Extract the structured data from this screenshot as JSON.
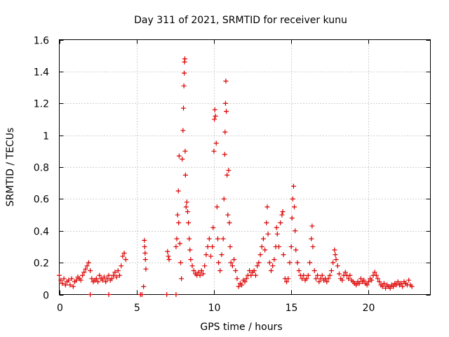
{
  "chart_data": {
    "type": "scatter",
    "title": "Day 311 of 2021, SRMTID for receiver kunu",
    "xlabel": "GPS time / hours",
    "ylabel": "SRMTID / TECUs",
    "xlim": [
      0,
      24
    ],
    "ylim": [
      0,
      1.6
    ],
    "xticks": [
      0,
      5,
      10,
      15,
      20
    ],
    "xtick_labels": [
      "0",
      "5",
      "10",
      "15",
      "20"
    ],
    "yticks": [
      0,
      0.2,
      0.4,
      0.6,
      0.8,
      1.0,
      1.2,
      1.4,
      1.6
    ],
    "ytick_labels": [
      "0",
      "0.2",
      "0.4",
      "0.6",
      "0.8",
      "1",
      "1.2",
      "1.4",
      "1.6"
    ],
    "grid": true,
    "marker": "+",
    "color": "#dd0000",
    "series": [
      {
        "name": "SRMTID",
        "points": [
          [
            0.0,
            0.12
          ],
          [
            0.1,
            0.09
          ],
          [
            0.2,
            0.07
          ],
          [
            0.3,
            0.1
          ],
          [
            0.4,
            0.06
          ],
          [
            0.5,
            0.08
          ],
          [
            0.6,
            0.09
          ],
          [
            0.7,
            0.06
          ],
          [
            0.8,
            0.1
          ],
          [
            0.9,
            0.05
          ],
          [
            1.0,
            0.08
          ],
          [
            1.1,
            0.09
          ],
          [
            1.2,
            0.11
          ],
          [
            1.3,
            0.1
          ],
          [
            1.4,
            0.09
          ],
          [
            1.5,
            0.12
          ],
          [
            1.6,
            0.14
          ],
          [
            1.7,
            0.16
          ],
          [
            1.8,
            0.18
          ],
          [
            1.9,
            0.2
          ],
          [
            2.0,
            0.15
          ],
          [
            2.1,
            0.1
          ],
          [
            2.2,
            0.08
          ],
          [
            2.3,
            0.09
          ],
          [
            2.4,
            0.1
          ],
          [
            2.5,
            0.08
          ],
          [
            2.6,
            0.12
          ],
          [
            2.7,
            0.1
          ],
          [
            2.8,
            0.09
          ],
          [
            2.9,
            0.11
          ],
          [
            3.0,
            0.08
          ],
          [
            3.1,
            0.1
          ],
          [
            3.2,
            0.12
          ],
          [
            3.3,
            0.09
          ],
          [
            3.4,
            0.1
          ],
          [
            3.5,
            0.12
          ],
          [
            3.6,
            0.14
          ],
          [
            3.7,
            0.11
          ],
          [
            3.8,
            0.15
          ],
          [
            3.9,
            0.12
          ],
          [
            4.0,
            0.18
          ],
          [
            4.1,
            0.24
          ],
          [
            4.2,
            0.26
          ],
          [
            4.3,
            0.22
          ],
          [
            2.0,
            0.0
          ],
          [
            3.2,
            0.0
          ],
          [
            5.25,
            0.0
          ],
          [
            5.35,
            0.0
          ],
          [
            6.95,
            0.0
          ],
          [
            7.55,
            0.0
          ],
          [
            5.45,
            0.05
          ],
          [
            5.5,
            0.34
          ],
          [
            5.52,
            0.3
          ],
          [
            5.55,
            0.26
          ],
          [
            5.57,
            0.22
          ],
          [
            5.6,
            0.16
          ],
          [
            7.0,
            0.27
          ],
          [
            7.05,
            0.24
          ],
          [
            7.1,
            0.22
          ],
          [
            7.55,
            0.3
          ],
          [
            7.6,
            0.35
          ],
          [
            7.65,
            0.5
          ],
          [
            7.7,
            0.65
          ],
          [
            7.72,
            0.45
          ],
          [
            7.75,
            0.87
          ],
          [
            7.8,
            0.32
          ],
          [
            7.85,
            0.2
          ],
          [
            7.9,
            0.1
          ],
          [
            7.95,
            0.85
          ],
          [
            8.0,
            1.03
          ],
          [
            8.03,
            1.17
          ],
          [
            8.06,
            1.31
          ],
          [
            8.08,
            1.39
          ],
          [
            8.1,
            1.46
          ],
          [
            8.12,
            1.48
          ],
          [
            8.14,
            0.9
          ],
          [
            8.16,
            0.75
          ],
          [
            8.2,
            0.55
          ],
          [
            8.25,
            0.58
          ],
          [
            8.3,
            0.52
          ],
          [
            8.35,
            0.45
          ],
          [
            8.4,
            0.35
          ],
          [
            8.45,
            0.28
          ],
          [
            8.5,
            0.22
          ],
          [
            8.6,
            0.18
          ],
          [
            8.7,
            0.15
          ],
          [
            8.8,
            0.13
          ],
          [
            8.9,
            0.12
          ],
          [
            9.0,
            0.14
          ],
          [
            9.1,
            0.12
          ],
          [
            9.2,
            0.15
          ],
          [
            9.3,
            0.13
          ],
          [
            9.4,
            0.18
          ],
          [
            9.5,
            0.25
          ],
          [
            9.6,
            0.3
          ],
          [
            9.7,
            0.35
          ],
          [
            9.8,
            0.24
          ],
          [
            9.9,
            0.3
          ],
          [
            9.95,
            0.42
          ],
          [
            10.0,
            0.9
          ],
          [
            10.03,
            1.1
          ],
          [
            10.06,
            1.16
          ],
          [
            10.1,
            1.12
          ],
          [
            10.15,
            0.95
          ],
          [
            10.2,
            0.55
          ],
          [
            10.25,
            0.35
          ],
          [
            10.3,
            0.2
          ],
          [
            10.4,
            0.15
          ],
          [
            10.5,
            0.25
          ],
          [
            10.6,
            0.35
          ],
          [
            10.65,
            0.6
          ],
          [
            10.7,
            0.88
          ],
          [
            10.72,
            1.02
          ],
          [
            10.75,
            1.2
          ],
          [
            10.77,
            1.34
          ],
          [
            10.8,
            1.15
          ],
          [
            10.85,
            0.75
          ],
          [
            10.9,
            0.5
          ],
          [
            10.95,
            0.78
          ],
          [
            11.0,
            0.45
          ],
          [
            11.05,
            0.3
          ],
          [
            11.1,
            0.2
          ],
          [
            11.2,
            0.18
          ],
          [
            11.3,
            0.22
          ],
          [
            11.4,
            0.15
          ],
          [
            11.5,
            0.1
          ],
          [
            11.6,
            0.05
          ],
          [
            11.7,
            0.07
          ],
          [
            11.8,
            0.06
          ],
          [
            11.9,
            0.09
          ],
          [
            12.0,
            0.08
          ],
          [
            12.1,
            0.1
          ],
          [
            12.2,
            0.12
          ],
          [
            12.3,
            0.15
          ],
          [
            12.4,
            0.12
          ],
          [
            12.5,
            0.14
          ],
          [
            12.6,
            0.15
          ],
          [
            12.7,
            0.12
          ],
          [
            12.8,
            0.18
          ],
          [
            12.9,
            0.2
          ],
          [
            13.0,
            0.25
          ],
          [
            13.1,
            0.3
          ],
          [
            13.2,
            0.35
          ],
          [
            13.3,
            0.28
          ],
          [
            13.4,
            0.45
          ],
          [
            13.45,
            0.55
          ],
          [
            13.5,
            0.38
          ],
          [
            13.6,
            0.2
          ],
          [
            13.7,
            0.15
          ],
          [
            13.8,
            0.18
          ],
          [
            13.9,
            0.22
          ],
          [
            14.0,
            0.3
          ],
          [
            14.05,
            0.42
          ],
          [
            14.1,
            0.38
          ],
          [
            14.2,
            0.3
          ],
          [
            14.3,
            0.45
          ],
          [
            14.4,
            0.5
          ],
          [
            14.45,
            0.52
          ],
          [
            14.5,
            0.25
          ],
          [
            14.6,
            0.1
          ],
          [
            14.7,
            0.08
          ],
          [
            14.8,
            0.1
          ],
          [
            14.9,
            0.2
          ],
          [
            15.0,
            0.3
          ],
          [
            15.05,
            0.48
          ],
          [
            15.1,
            0.6
          ],
          [
            15.15,
            0.68
          ],
          [
            15.2,
            0.55
          ],
          [
            15.25,
            0.4
          ],
          [
            15.3,
            0.28
          ],
          [
            15.4,
            0.2
          ],
          [
            15.5,
            0.15
          ],
          [
            15.6,
            0.12
          ],
          [
            15.7,
            0.1
          ],
          [
            15.8,
            0.12
          ],
          [
            15.9,
            0.09
          ],
          [
            16.0,
            0.1
          ],
          [
            16.1,
            0.12
          ],
          [
            16.2,
            0.2
          ],
          [
            16.3,
            0.35
          ],
          [
            16.35,
            0.43
          ],
          [
            16.4,
            0.3
          ],
          [
            16.5,
            0.15
          ],
          [
            16.6,
            0.1
          ],
          [
            16.7,
            0.12
          ],
          [
            16.8,
            0.08
          ],
          [
            16.9,
            0.1
          ],
          [
            17.0,
            0.12
          ],
          [
            17.1,
            0.09
          ],
          [
            17.2,
            0.1
          ],
          [
            17.3,
            0.08
          ],
          [
            17.4,
            0.1
          ],
          [
            17.5,
            0.12
          ],
          [
            17.6,
            0.15
          ],
          [
            17.7,
            0.2
          ],
          [
            17.8,
            0.28
          ],
          [
            17.85,
            0.25
          ],
          [
            17.9,
            0.22
          ],
          [
            18.0,
            0.18
          ],
          [
            18.1,
            0.13
          ],
          [
            18.2,
            0.1
          ],
          [
            18.3,
            0.09
          ],
          [
            18.4,
            0.12
          ],
          [
            18.5,
            0.14
          ],
          [
            18.6,
            0.12
          ],
          [
            18.7,
            0.1
          ],
          [
            18.8,
            0.12
          ],
          [
            18.9,
            0.09
          ],
          [
            19.0,
            0.08
          ],
          [
            19.1,
            0.07
          ],
          [
            19.2,
            0.06
          ],
          [
            19.3,
            0.08
          ],
          [
            19.4,
            0.07
          ],
          [
            19.5,
            0.1
          ],
          [
            19.6,
            0.08
          ],
          [
            19.7,
            0.09
          ],
          [
            19.8,
            0.07
          ],
          [
            19.9,
            0.06
          ],
          [
            20.0,
            0.08
          ],
          [
            20.1,
            0.1
          ],
          [
            20.2,
            0.09
          ],
          [
            20.3,
            0.12
          ],
          [
            20.4,
            0.14
          ],
          [
            20.5,
            0.12
          ],
          [
            20.6,
            0.1
          ],
          [
            20.7,
            0.08
          ],
          [
            20.8,
            0.06
          ],
          [
            20.9,
            0.05
          ],
          [
            21.0,
            0.07
          ],
          [
            21.1,
            0.04
          ],
          [
            21.2,
            0.06
          ],
          [
            21.3,
            0.05
          ],
          [
            21.4,
            0.04
          ],
          [
            21.5,
            0.06
          ],
          [
            21.6,
            0.05
          ],
          [
            21.7,
            0.07
          ],
          [
            21.8,
            0.06
          ],
          [
            21.9,
            0.08
          ],
          [
            22.0,
            0.06
          ],
          [
            22.1,
            0.07
          ],
          [
            22.2,
            0.05
          ],
          [
            22.3,
            0.08
          ],
          [
            22.4,
            0.07
          ],
          [
            22.5,
            0.06
          ],
          [
            22.6,
            0.09
          ],
          [
            22.7,
            0.06
          ],
          [
            22.8,
            0.05
          ]
        ]
      }
    ]
  }
}
